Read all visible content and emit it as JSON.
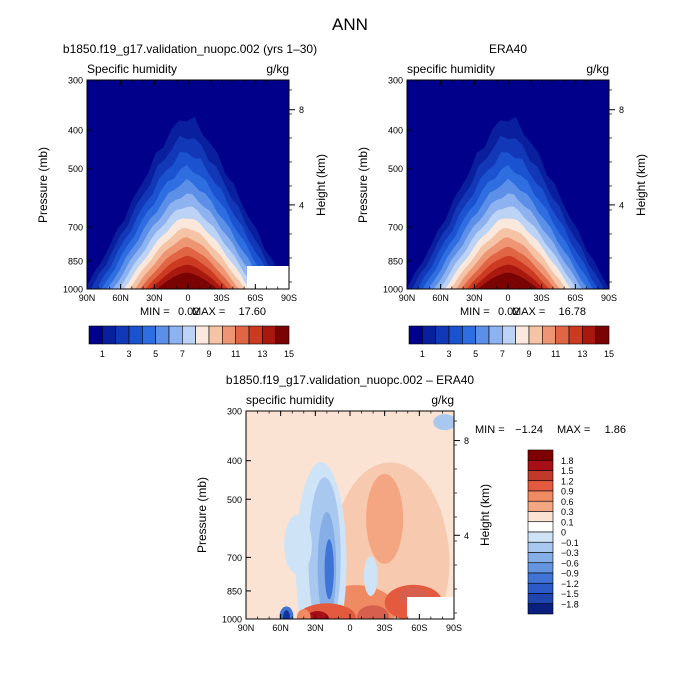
{
  "figure_title": "ANN",
  "colors": {
    "positive_ramp": [
      "#fbe3d4",
      "#f7c9ae",
      "#f4a582",
      "#ef8a62",
      "#e35a3f",
      "#d6604d",
      "#c0392b",
      "#a50f15",
      "#7f0000"
    ],
    "negative_ramp": [
      "#cfe3f7",
      "#a9c8ef",
      "#86aee6",
      "#6495e0",
      "#3f74d6",
      "#2b5bc8",
      "#1f45b0",
      "#12329a",
      "#0a1f80"
    ],
    "humidity_scale": [
      "#00008a",
      "#0a1f9e",
      "#1238b8",
      "#1a52cf",
      "#2f6ee0",
      "#5b8fe8",
      "#8db2ef",
      "#bcd3f5",
      "#fbe8dc",
      "#f5c3a5",
      "#ee9573",
      "#e06545",
      "#cc3a22",
      "#a8180e",
      "#7a0403"
    ]
  },
  "chart_data": [
    {
      "type": "heatmap",
      "panel": "model",
      "title": "b1850.f19_g17.validation_nuopc.002 (yrs 1–30)",
      "variable": "Specific humidity",
      "units": "g/kg",
      "xlabel": "",
      "ylabel": "Pressure (mb)",
      "right_label": "Height (km)",
      "x_ticks": [
        "90N",
        "60N",
        "30N",
        "0",
        "30S",
        "60S",
        "90S"
      ],
      "x_range": [
        90,
        -90
      ],
      "y_ticks": [
        "300",
        "400",
        "500",
        "700",
        "850",
        "1000"
      ],
      "y_range_mb": [
        300,
        1000
      ],
      "height_ticks": [
        "8",
        "4"
      ],
      "min_label": "MIN =",
      "min": "0.02",
      "max_label": "MAX =",
      "max": "17.60"
    },
    {
      "type": "heatmap",
      "panel": "obs",
      "title": "ERA40",
      "variable": "specific humidity",
      "units": "g/kg",
      "xlabel": "",
      "ylabel": "Pressure (mb)",
      "right_label": "Height (km)",
      "x_ticks": [
        "90N",
        "60N",
        "30N",
        "0",
        "30S",
        "60S",
        "90S"
      ],
      "x_range": [
        90,
        -90
      ],
      "y_ticks": [
        "300",
        "400",
        "500",
        "700",
        "850",
        "1000"
      ],
      "y_range_mb": [
        300,
        1000
      ],
      "height_ticks": [
        "8",
        "4"
      ],
      "min_label": "MIN =",
      "min": "0.02",
      "max_label": "MAX =",
      "max": "16.78"
    },
    {
      "type": "heatmap",
      "panel": "difference",
      "title": "b1850.f19_g17.validation_nuopc.002 – ERA40",
      "variable": "specific humidity",
      "units": "g/kg",
      "xlabel": "",
      "ylabel": "Pressure (mb)",
      "right_label": "Height (km)",
      "x_ticks": [
        "90N",
        "60N",
        "30N",
        "0",
        "30S",
        "60S",
        "90S"
      ],
      "x_range": [
        90,
        -90
      ],
      "y_ticks": [
        "300",
        "400",
        "500",
        "700",
        "850",
        "1000"
      ],
      "y_range_mb": [
        300,
        1000
      ],
      "height_ticks": [
        "8",
        "4"
      ],
      "min_label": "MIN =",
      "min": "−1.24",
      "max_label": "MAX =",
      "max": "1.86"
    }
  ],
  "colorbars": {
    "humidity_levels": [
      "1",
      "3",
      "5",
      "7",
      "9",
      "11",
      "13",
      "15"
    ],
    "difference_levels": [
      "1.8",
      "1.5",
      "1.2",
      "0.9",
      "0.6",
      "0.3",
      "0.1",
      "0",
      "−0.1",
      "−0.3",
      "−0.6",
      "−0.9",
      "−1.2",
      "−1.5",
      "−1.8"
    ]
  }
}
